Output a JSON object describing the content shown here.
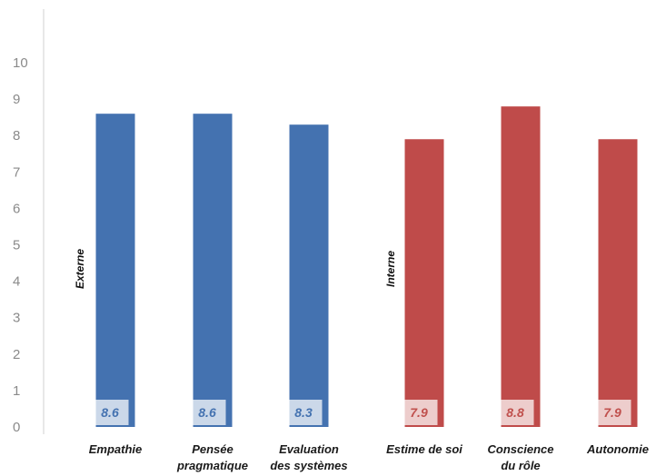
{
  "chart_data": {
    "type": "bar",
    "categories": [
      [
        "Empathie"
      ],
      [
        "Pensée",
        "pragmatique"
      ],
      [
        "Evaluation",
        "des systèmes"
      ],
      [
        "Estime de soi"
      ],
      [
        "Conscience",
        "du rôle"
      ],
      [
        "Autonomie"
      ]
    ],
    "values": [
      8.6,
      8.6,
      8.3,
      7.9,
      8.8,
      7.9
    ],
    "value_labels": [
      "8.6",
      "8.6",
      "8.3",
      "7.9",
      "8.8",
      "7.9"
    ],
    "groups": [
      {
        "label": "Externe",
        "color": "#4472b0",
        "label_color": "#4472b0",
        "indices": [
          0,
          1,
          2
        ]
      },
      {
        "label": "Interne",
        "color": "#bf4b4a",
        "label_color": "#c0504d",
        "indices": [
          3,
          4,
          5
        ]
      }
    ],
    "yticks": [
      0,
      1,
      2,
      3,
      4,
      5,
      6,
      7,
      8,
      9,
      10
    ],
    "ylim": [
      0,
      10.6
    ],
    "grid": false,
    "legend": "none"
  }
}
